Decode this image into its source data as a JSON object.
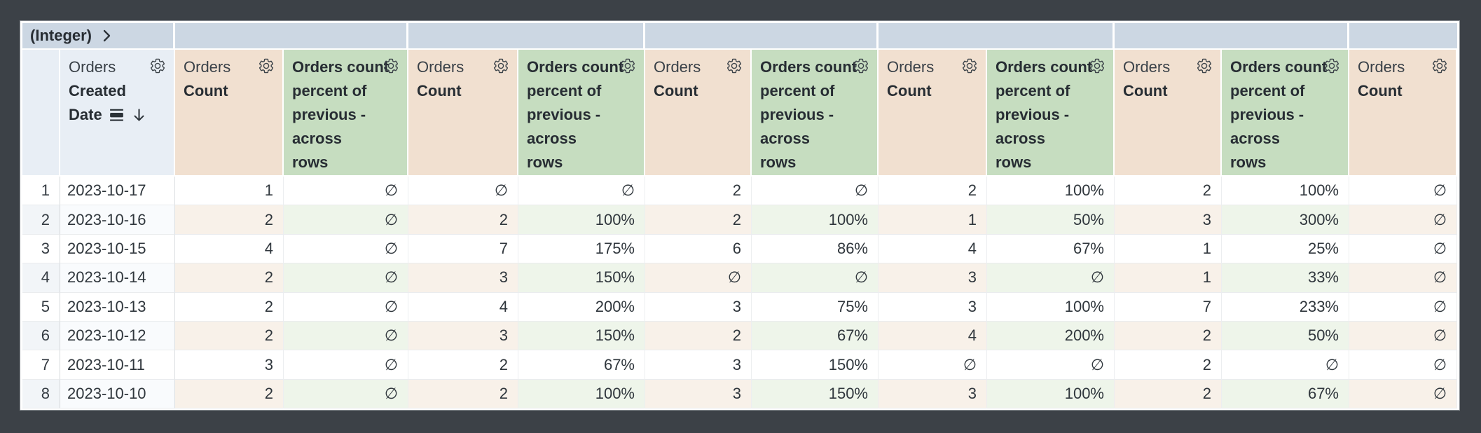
{
  "pivot": {
    "field_label": "(Integer)",
    "expand_icon": "chevron-right-icon",
    "values": [
      "",
      "",
      "",
      "",
      "",
      ""
    ]
  },
  "header": {
    "view_label": "Orders",
    "dimension_lines": [
      "Created",
      "Date"
    ],
    "dimension_icons": [
      "calendar-view-day-icon",
      "sort-descending-arrow-icon"
    ],
    "count_label": "Count",
    "calc_label": "Orders count percent of previous - across rows",
    "calc_lines": [
      "Orders count",
      "percent of",
      "previous -",
      "across",
      "rows"
    ],
    "gear_icon": "gear-icon"
  },
  "measure_columns": [
    "count",
    "calc",
    "count",
    "calc",
    "count",
    "calc",
    "count",
    "calc",
    "count",
    "calc",
    "count"
  ],
  "rows": [
    {
      "n": "1",
      "date": "2023-10-17",
      "values": [
        "1",
        "∅",
        "∅",
        "∅",
        "2",
        "∅",
        "2",
        "100%",
        "2",
        "100%",
        "∅"
      ]
    },
    {
      "n": "2",
      "date": "2023-10-16",
      "values": [
        "2",
        "∅",
        "2",
        "100%",
        "2",
        "100%",
        "1",
        "50%",
        "3",
        "300%",
        "∅"
      ]
    },
    {
      "n": "3",
      "date": "2023-10-15",
      "values": [
        "4",
        "∅",
        "7",
        "175%",
        "6",
        "86%",
        "4",
        "67%",
        "1",
        "25%",
        "∅"
      ]
    },
    {
      "n": "4",
      "date": "2023-10-14",
      "values": [
        "2",
        "∅",
        "3",
        "150%",
        "∅",
        "∅",
        "3",
        "∅",
        "1",
        "33%",
        "∅"
      ]
    },
    {
      "n": "5",
      "date": "2023-10-13",
      "values": [
        "2",
        "∅",
        "4",
        "200%",
        "3",
        "75%",
        "3",
        "100%",
        "7",
        "233%",
        "∅"
      ]
    },
    {
      "n": "6",
      "date": "2023-10-12",
      "values": [
        "2",
        "∅",
        "3",
        "150%",
        "2",
        "67%",
        "4",
        "200%",
        "2",
        "50%",
        "∅"
      ]
    },
    {
      "n": "7",
      "date": "2023-10-11",
      "values": [
        "3",
        "∅",
        "2",
        "67%",
        "3",
        "150%",
        "∅",
        "∅",
        "2",
        "∅",
        "∅"
      ]
    },
    {
      "n": "8",
      "date": "2023-10-10",
      "values": [
        "2",
        "∅",
        "2",
        "100%",
        "3",
        "150%",
        "3",
        "100%",
        "2",
        "67%",
        "∅"
      ]
    }
  ],
  "empty_value_symbol": "∅",
  "colors": {
    "frame_background": "#3c4147",
    "pivot_bar": "#ccd7e3",
    "dimension_header": "#e8eef5",
    "count_header": "#f1e0d0",
    "calc_header": "#c6ddc0",
    "count_row_tint": "#f8f1e9",
    "calc_row_tint": "#eef5ea",
    "dimension_row_tint": "#f2f5f8",
    "text": "#2f363c"
  }
}
